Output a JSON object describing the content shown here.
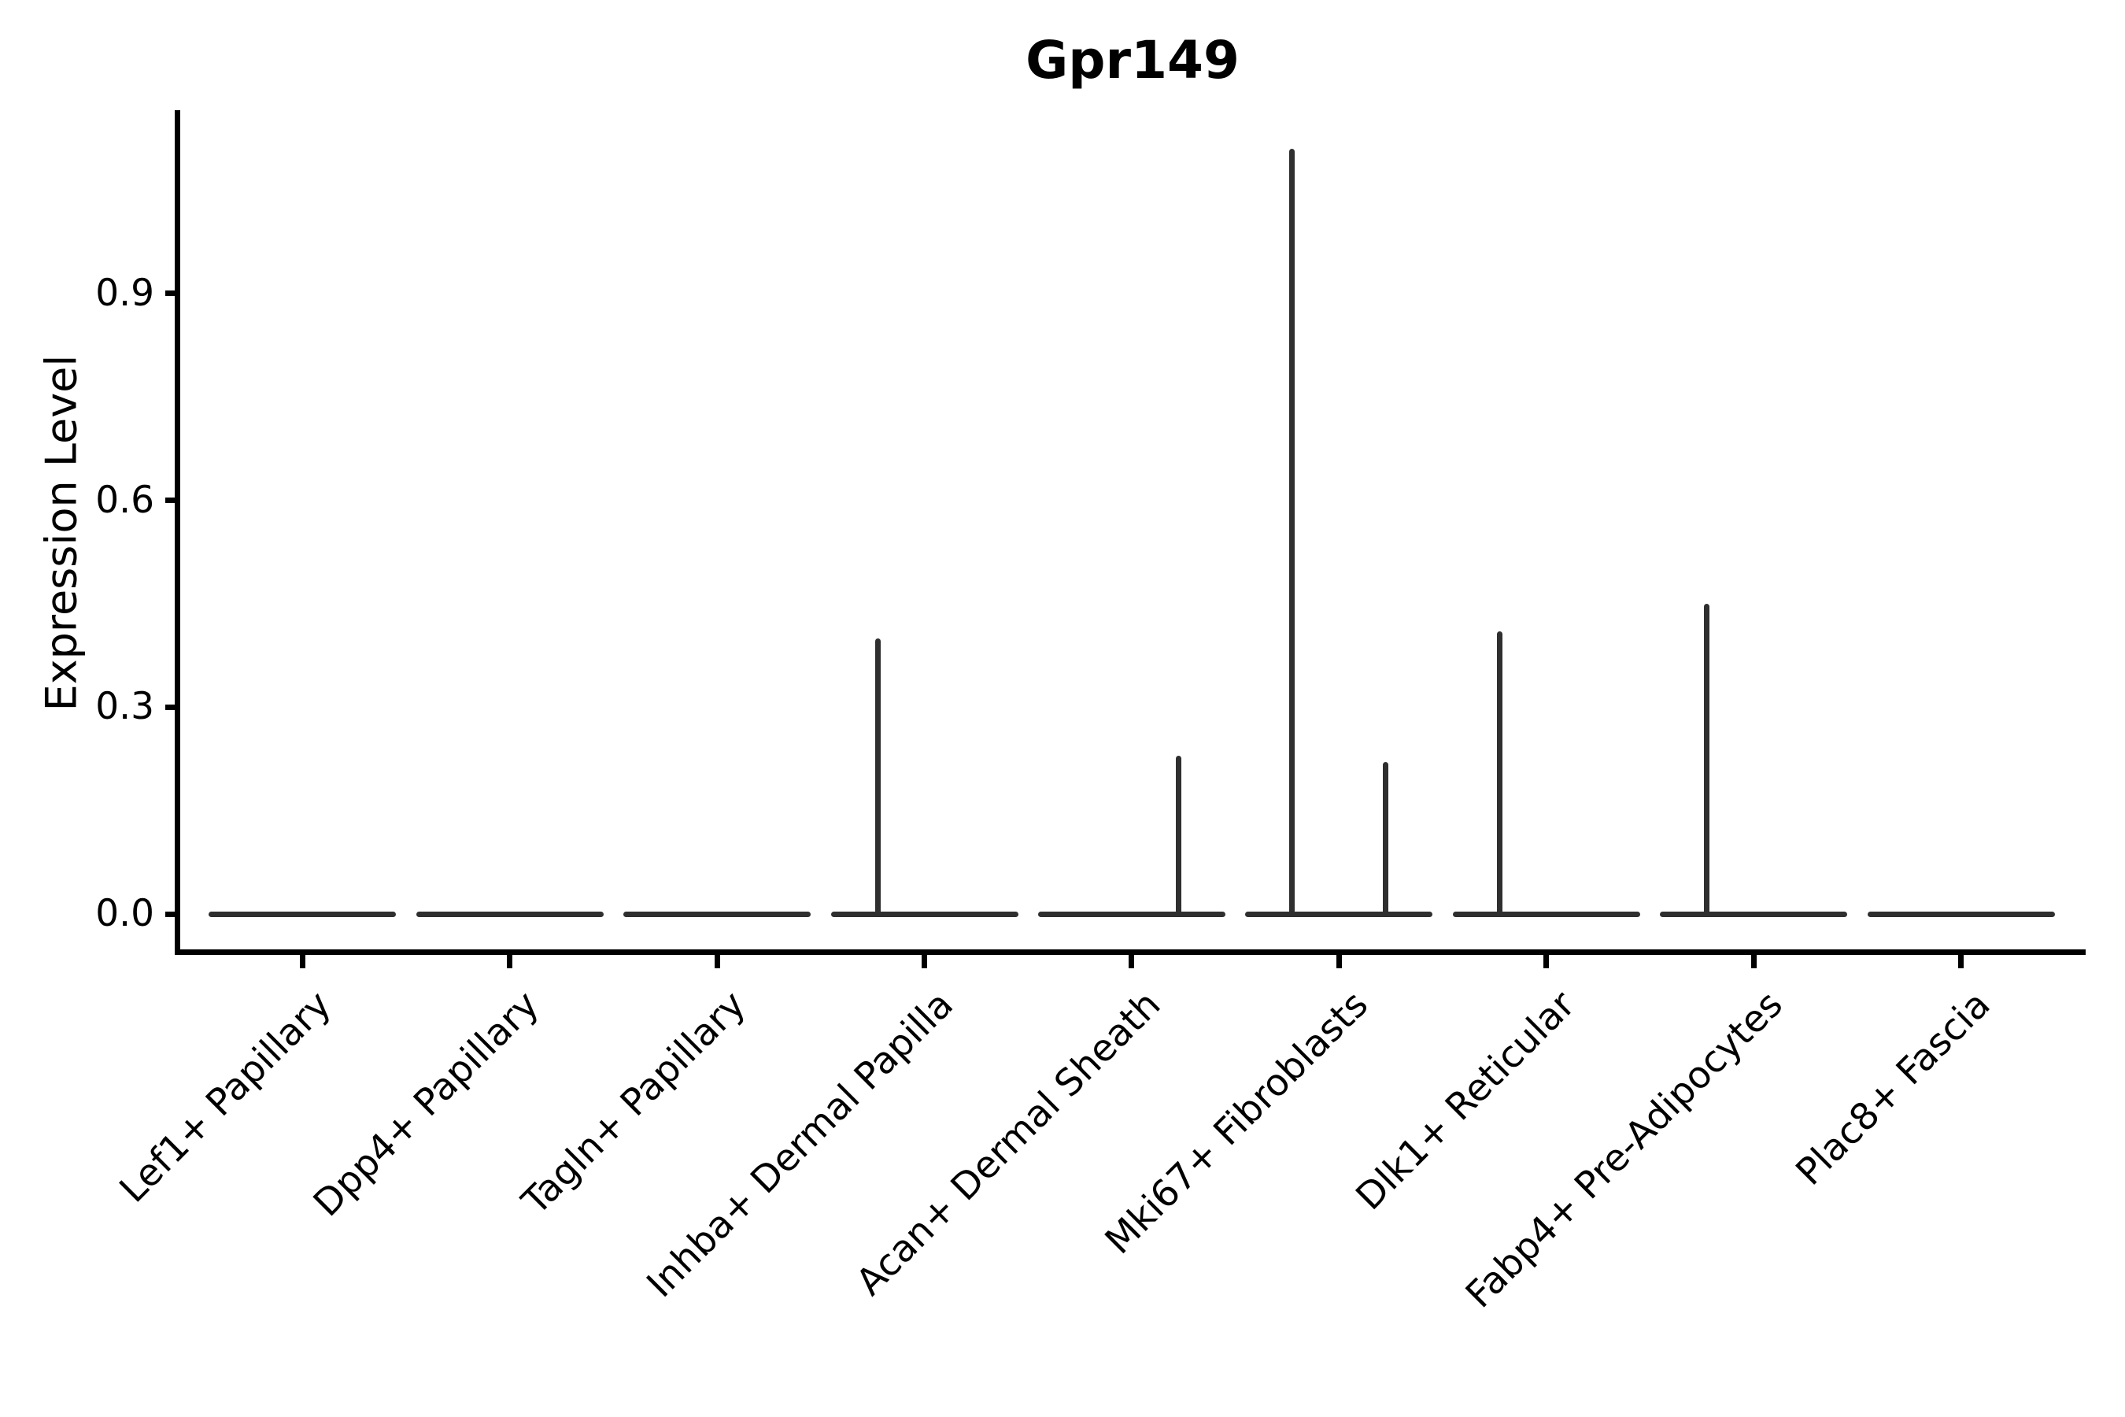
{
  "figure": {
    "background": "#ffffff"
  },
  "chart_data": {
    "type": "violin",
    "title": "Gpr149",
    "xlabel": "",
    "ylabel": "Expression Level",
    "categories": [
      "Lef1+ Papillary",
      "Dpp4+ Papillary",
      "Tagln+ Papillary",
      "Inhba+ Dermal Papilla",
      "Acan+ Dermal Sheath",
      "Mki67+ Fibroblasts",
      "Dlk1+ Reticular",
      "Fabp4+ Pre-Adipocytes",
      "Plac8+ Fascia"
    ],
    "y_ticks": [
      0.0,
      0.3,
      0.6,
      0.9
    ],
    "y_tick_labels": [
      "0.0",
      "0.3",
      "0.6",
      "0.9"
    ],
    "ylim": [
      -0.055,
      1.17
    ],
    "grid": false,
    "legend_position": "none",
    "axis_color": "#000000",
    "violin_edge_color": "#2f2f2f",
    "violins": [
      {
        "category": "Lef1+ Papillary",
        "flat_at_zero": true,
        "spikes": []
      },
      {
        "category": "Dpp4+ Papillary",
        "flat_at_zero": true,
        "spikes": []
      },
      {
        "category": "Tagln+ Papillary",
        "flat_at_zero": true,
        "spikes": []
      },
      {
        "category": "Inhba+ Dermal Papilla",
        "flat_at_zero": true,
        "spikes": [
          {
            "side": "left",
            "value": 0.4
          }
        ]
      },
      {
        "category": "Acan+ Dermal Sheath",
        "flat_at_zero": true,
        "spikes": [
          {
            "side": "right",
            "value": 0.23
          }
        ]
      },
      {
        "category": "Mki67+ Fibroblasts",
        "flat_at_zero": true,
        "spikes": [
          {
            "side": "left",
            "value": 1.11
          },
          {
            "side": "right",
            "value": 0.22
          }
        ]
      },
      {
        "category": "Dlk1+ Reticular",
        "flat_at_zero": true,
        "spikes": [
          {
            "side": "left",
            "value": 0.41
          }
        ]
      },
      {
        "category": "Fabp4+ Pre-Adipocytes",
        "flat_at_zero": true,
        "spikes": [
          {
            "side": "left",
            "value": 0.45
          }
        ]
      },
      {
        "category": "Plac8+ Fascia",
        "flat_at_zero": true,
        "spikes": []
      }
    ]
  }
}
